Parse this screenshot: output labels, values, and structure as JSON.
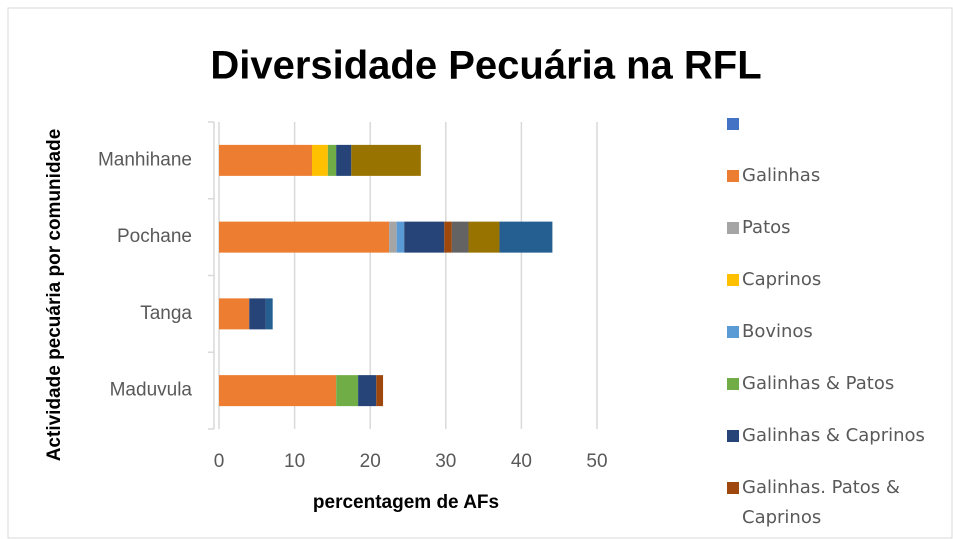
{
  "chart_data": {
    "type": "stacked_barh",
    "title": "Diversidade Pecuária na RFL",
    "xlabel": "percentagem de AFs",
    "ylabel": "Actividade pecuária  por comunidade",
    "categories": [
      "Manhihane",
      "Pochane",
      "Tanga",
      "Maduvula"
    ],
    "series": [
      {
        "name": null,
        "color": "#4472c4",
        "values": [
          0,
          0,
          0,
          0
        ]
      },
      {
        "name": "Galinhas",
        "color": "#ed7d31",
        "values": [
          12.3,
          22.5,
          4.0,
          15.5
        ]
      },
      {
        "name": "Patos",
        "color": "#a5a5a5",
        "values": [
          0,
          1.0,
          0,
          0
        ]
      },
      {
        "name": "Caprinos",
        "color": "#ffc000",
        "values": [
          2.1,
          0,
          0,
          0
        ]
      },
      {
        "name": "Bovinos",
        "color": "#5b9bd5",
        "values": [
          0,
          1.0,
          0,
          0
        ]
      },
      {
        "name": "Galinhas & Patos",
        "color": "#70ad47",
        "values": [
          1.1,
          0,
          0,
          2.9
        ]
      },
      {
        "name": "Galinhas & Caprinos",
        "color": "#264478",
        "values": [
          2.0,
          5.3,
          2.2,
          2.4
        ]
      },
      {
        "name": "Galinhas. Patos & Caprinos",
        "color": "#9e480e",
        "values": [
          0,
          1.0,
          0,
          0.9
        ]
      },
      {
        "color": "#636363",
        "values": [
          0,
          2.2,
          0,
          0
        ]
      },
      {
        "color": "#997300",
        "values": [
          9.2,
          4.1,
          0,
          0
        ]
      },
      {
        "color": "#255e91",
        "values": [
          0,
          7.0,
          0.9,
          0
        ]
      }
    ],
    "xlim": [
      0,
      50
    ],
    "xticks": [
      0,
      10,
      20,
      30,
      40,
      50
    ],
    "grid": true
  }
}
